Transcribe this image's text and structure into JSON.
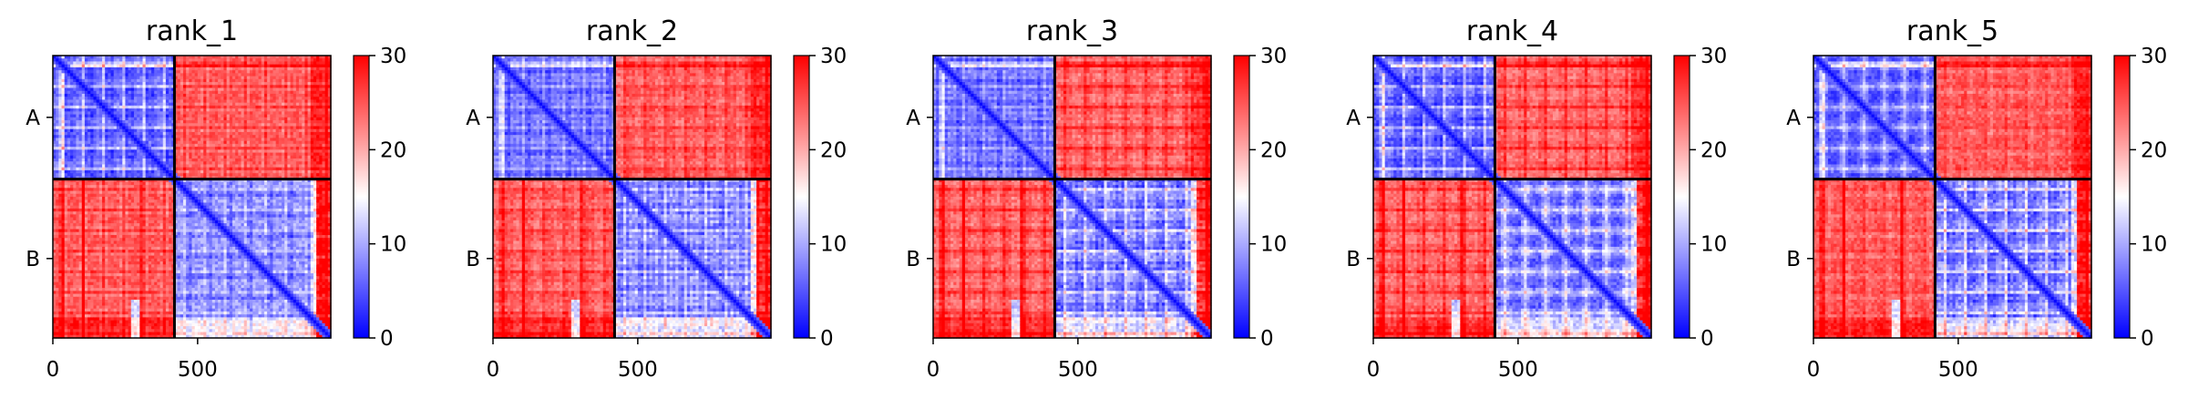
{
  "chart_data": [
    {
      "type": "heatmap",
      "title": "rank_1",
      "x_ticks": [
        0,
        500
      ],
      "y_ticks": [
        "A",
        "B"
      ],
      "xlim": [
        0,
        960
      ],
      "chain_boundary": 420,
      "colorbar": {
        "ticks": [
          0,
          10,
          20,
          30
        ],
        "range": [
          0,
          30
        ],
        "cmap": [
          "#0000ff",
          "#ffffff",
          "#ff0000"
        ]
      }
    },
    {
      "type": "heatmap",
      "title": "rank_2",
      "x_ticks": [
        0,
        500
      ],
      "y_ticks": [
        "A",
        "B"
      ],
      "xlim": [
        0,
        960
      ],
      "chain_boundary": 420,
      "colorbar": {
        "ticks": [
          0,
          10,
          20,
          30
        ],
        "range": [
          0,
          30
        ],
        "cmap": [
          "#0000ff",
          "#ffffff",
          "#ff0000"
        ]
      }
    },
    {
      "type": "heatmap",
      "title": "rank_3",
      "x_ticks": [
        0,
        500
      ],
      "y_ticks": [
        "A",
        "B"
      ],
      "xlim": [
        0,
        960
      ],
      "chain_boundary": 420,
      "colorbar": {
        "ticks": [
          0,
          10,
          20,
          30
        ],
        "range": [
          0,
          30
        ],
        "cmap": [
          "#0000ff",
          "#ffffff",
          "#ff0000"
        ]
      }
    },
    {
      "type": "heatmap",
      "title": "rank_4",
      "x_ticks": [
        0,
        500
      ],
      "y_ticks": [
        "A",
        "B"
      ],
      "xlim": [
        0,
        960
      ],
      "chain_boundary": 420,
      "colorbar": {
        "ticks": [
          0,
          10,
          20,
          30
        ],
        "range": [
          0,
          30
        ],
        "cmap": [
          "#0000ff",
          "#ffffff",
          "#ff0000"
        ]
      }
    },
    {
      "type": "heatmap",
      "title": "rank_5",
      "x_ticks": [
        0,
        500
      ],
      "y_ticks": [
        "A",
        "B"
      ],
      "xlim": [
        0,
        960
      ],
      "chain_boundary": 420,
      "colorbar": {
        "ticks": [
          0,
          10,
          20,
          30
        ],
        "range": [
          0,
          30
        ],
        "cmap": [
          "#0000ff",
          "#ffffff",
          "#ff0000"
        ]
      }
    }
  ]
}
